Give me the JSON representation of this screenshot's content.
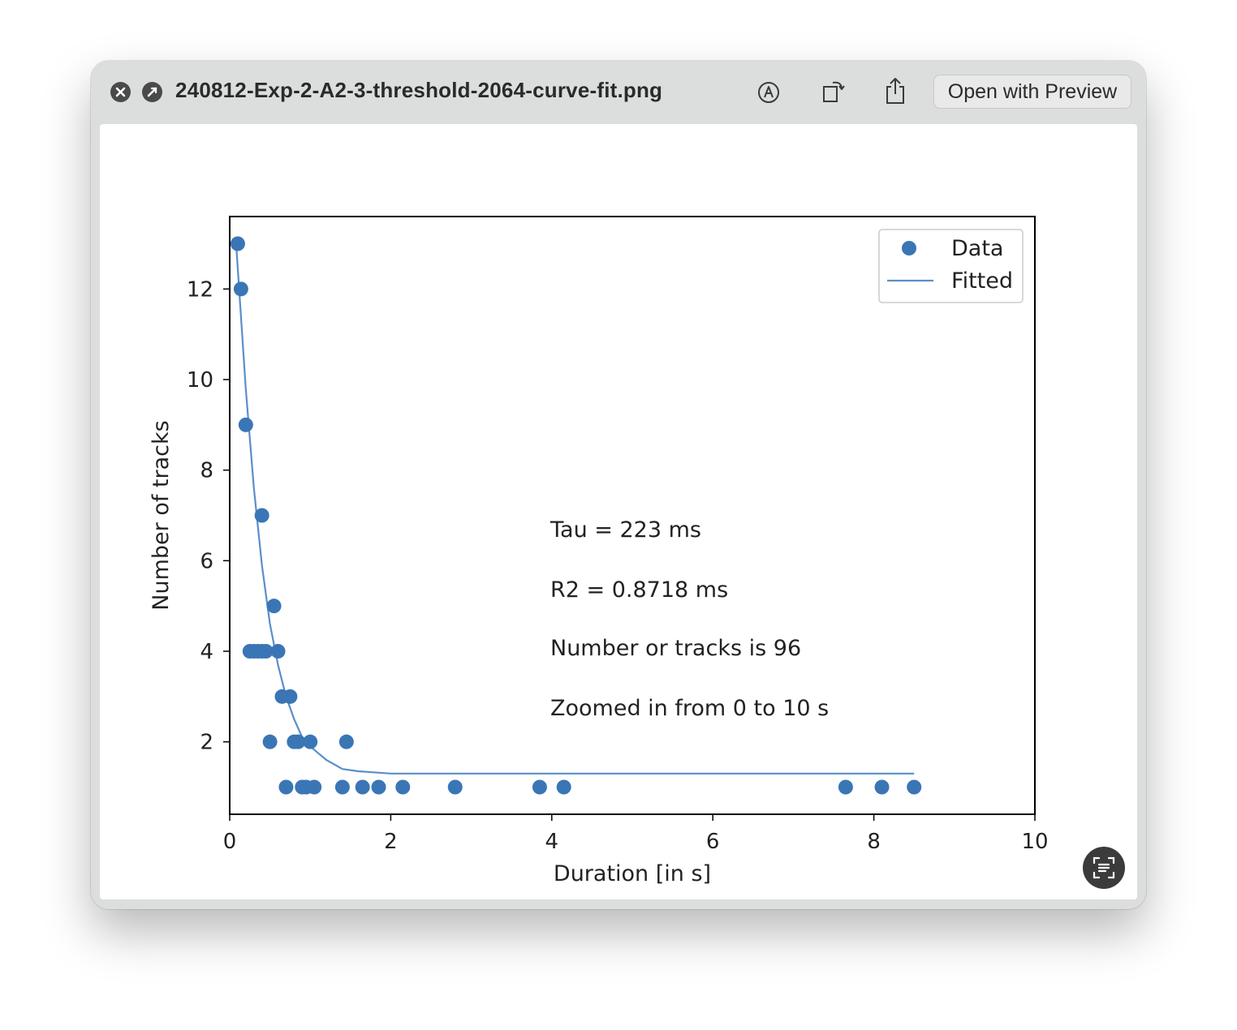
{
  "window": {
    "title": "240812-Exp-2-A2-3-threshold-2064-curve-fit.png",
    "open_with_label": "Open with Preview"
  },
  "icons": {
    "close": "close-icon",
    "fullscreen": "fullscreen-icon",
    "markup": "markup-icon",
    "rotate": "rotate-icon",
    "share": "share-icon",
    "live_text": "live-text-icon"
  },
  "colors": {
    "series": "#3a76b5",
    "line": "#5a8fc9"
  },
  "chart_data": {
    "type": "scatter",
    "xlabel": "Duration [in s]",
    "ylabel": "Number of tracks",
    "xlim": [
      0,
      10
    ],
    "ylim": [
      0.4,
      13.6
    ],
    "xticks": [
      0,
      2,
      4,
      6,
      8,
      10
    ],
    "yticks": [
      2,
      4,
      6,
      8,
      10,
      12
    ],
    "legend": {
      "position": "upper right",
      "entries": [
        "Data",
        "Fitted"
      ]
    },
    "series": [
      {
        "name": "Data",
        "kind": "scatter",
        "x": [
          0.1,
          0.14,
          0.2,
          0.25,
          0.3,
          0.35,
          0.4,
          0.45,
          0.4,
          0.55,
          0.6,
          0.65,
          0.75,
          0.5,
          0.8,
          0.85,
          1.0,
          1.45,
          0.7,
          0.9,
          0.95,
          1.05,
          1.4,
          1.65,
          1.85,
          2.15,
          2.8,
          3.85,
          4.15,
          7.65,
          8.1,
          8.5
        ],
        "y": [
          13,
          12,
          9,
          4,
          4,
          4,
          4,
          4,
          7,
          5,
          4,
          3,
          3,
          2,
          2,
          2,
          2,
          2,
          1,
          1,
          1,
          1,
          1,
          1,
          1,
          1,
          1,
          1,
          1,
          1,
          1,
          1
        ]
      },
      {
        "name": "Fitted",
        "kind": "line",
        "model": "exponential decay",
        "x": [
          0.08,
          0.2,
          0.3,
          0.4,
          0.5,
          0.6,
          0.7,
          0.8,
          0.9,
          1.0,
          1.2,
          1.4,
          1.6,
          2.0,
          3.0,
          5.0,
          8.5
        ],
        "y": [
          13.0,
          9.8,
          7.6,
          5.9,
          4.6,
          3.7,
          3.0,
          2.5,
          2.1,
          1.9,
          1.6,
          1.4,
          1.35,
          1.3,
          1.3,
          1.3,
          1.3
        ]
      }
    ],
    "annotations": [
      "Tau = 223 ms",
      "R2 = 0.8718 ms",
      "Number or tracks is 96",
      "Zoomed in from 0 to 10 s"
    ]
  }
}
